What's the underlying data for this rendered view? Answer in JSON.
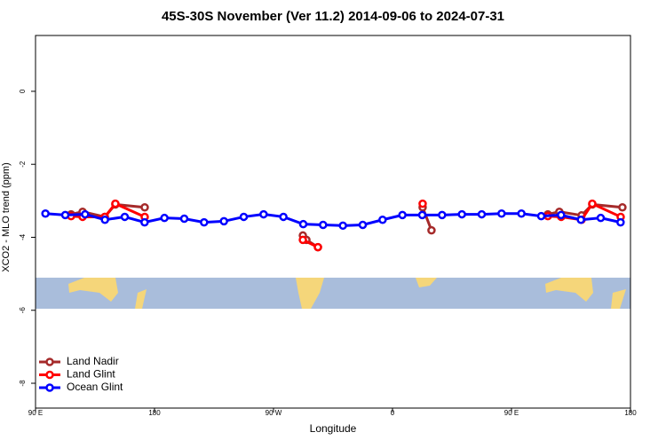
{
  "chart_data": {
    "type": "line",
    "title": "45S-30S November (Ver 11.2)   2014-09-06 to 2024-07-31",
    "x_label": "Longitude",
    "y_label": "XCO2 - MLO trend (ppm)",
    "xlim": [
      90,
      540
    ],
    "ylim": [
      -8.68,
      1.53
    ],
    "xticks": [
      {
        "value": 90,
        "label": "90 E"
      },
      180,
      {
        "value": 270,
        "label": "90 W"
      },
      {
        "value": 360,
        "label": "0"
      },
      {
        "value": 450,
        "label": "90 E"
      },
      {
        "value": 540,
        "label": "180"
      }
    ],
    "yticks": [
      0,
      -2,
      -4,
      -6,
      -8
    ],
    "legend": "bottom-left",
    "series": [
      {
        "name": "Land Nadir",
        "color": "#a52a2a",
        "x": [
          116.9,
          125.6,
          142.4,
          150.4,
          172.6,
          null,
          292.2,
          294.9,
          303.6,
          null,
          382.8,
          389.5,
          null,
          477.5,
          486.2,
          503,
          511.1,
          533.9
        ],
        "values": [
          -3.37,
          -3.3,
          -3.44,
          -3.1,
          -3.18,
          null,
          -3.95,
          -4.07,
          -4.27,
          null,
          -3.18,
          -3.81,
          null,
          -3.37,
          -3.3,
          -3.4,
          -3.1,
          -3.18
        ]
      },
      {
        "name": "Land Glint",
        "color": "#ff0000",
        "x": [
          116.9,
          125.6,
          142.4,
          150.4,
          172.6,
          null,
          292.2,
          303.6,
          null,
          382.8,
          null,
          477.5,
          487.6,
          503,
          511.1,
          532.6
        ],
        "values": [
          -3.42,
          -3.44,
          -3.44,
          -3.08,
          -3.44,
          null,
          -4.07,
          -4.27,
          null,
          -3.08,
          null,
          -3.42,
          -3.44,
          -3.52,
          -3.08,
          -3.44
        ]
      },
      {
        "name": "Ocean Glint",
        "color": "#0000ff",
        "x": [
          97.5,
          112.5,
          127.5,
          142.5,
          157.5,
          172.5,
          187.5,
          202.5,
          217.5,
          232.5,
          247.5,
          262.5,
          277.5,
          292.5,
          307.5,
          322.5,
          337.5,
          352.5,
          367.5,
          382.5,
          397.5,
          412.5,
          427.5,
          442.5,
          457.5,
          472.5,
          487.5,
          502.5,
          517.5,
          532.5
        ],
        "values": [
          -3.35,
          -3.39,
          -3.37,
          -3.52,
          -3.44,
          -3.59,
          -3.47,
          -3.49,
          -3.59,
          -3.56,
          -3.44,
          -3.37,
          -3.44,
          -3.64,
          -3.66,
          -3.68,
          -3.66,
          -3.52,
          -3.39,
          -3.39,
          -3.39,
          -3.37,
          -3.37,
          -3.35,
          -3.35,
          -3.42,
          -3.39,
          -3.52,
          -3.47,
          -3.59
        ]
      }
    ]
  }
}
